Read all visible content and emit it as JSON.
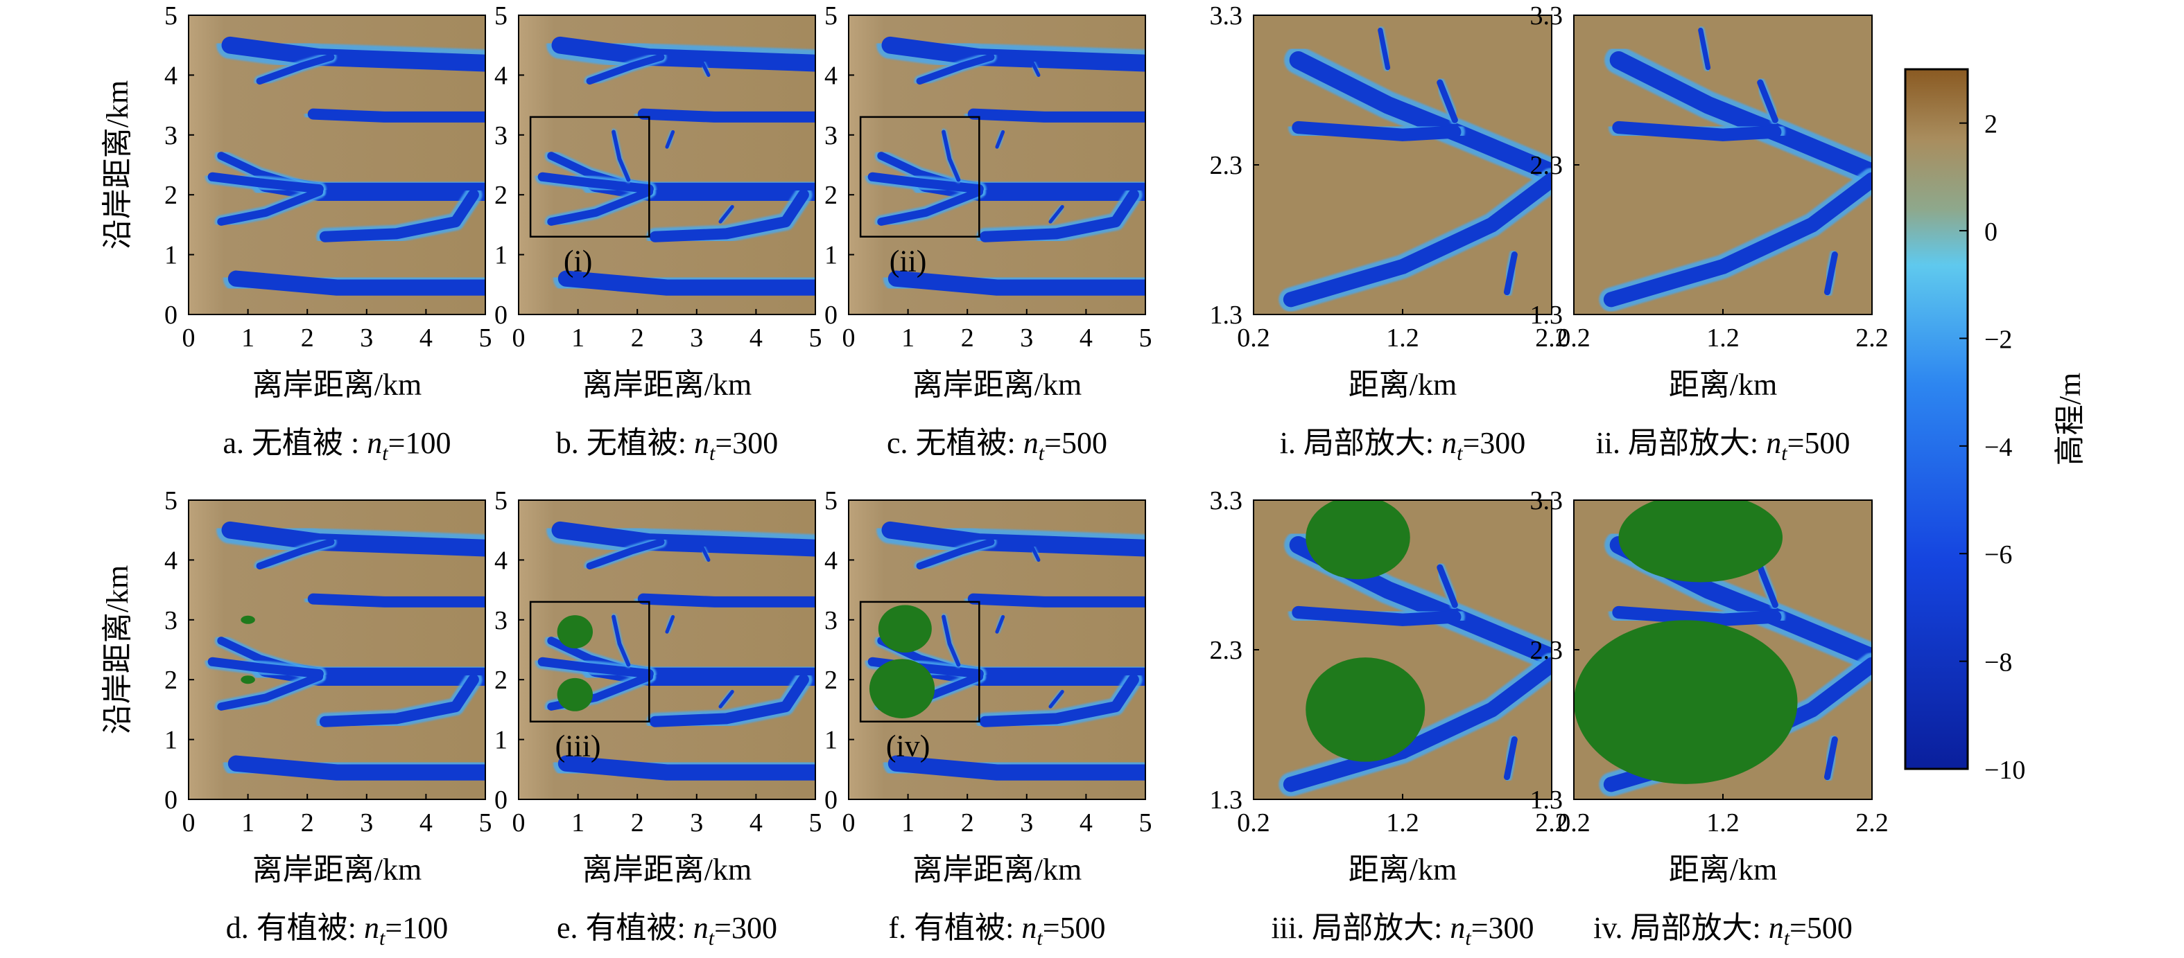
{
  "colorbar": {
    "label": "高程/m",
    "ticks": [
      "2",
      "0",
      "−2",
      "−4",
      "−6",
      "−8",
      "−10"
    ],
    "tick_values": [
      2,
      0,
      -2,
      -4,
      -6,
      -8,
      -10
    ],
    "range": [
      -10,
      3
    ],
    "colors": [
      "#0a1f9c",
      "#0f3fd6",
      "#1f6ff0",
      "#3ea0ef",
      "#5fc9ee",
      "#8fa68a",
      "#a98d5e",
      "#8a5a22"
    ]
  },
  "colors": {
    "sand": "#a48a5e",
    "sand_light": "#bfa57a",
    "channel_deep": "#0f3ad0",
    "channel_edge": "#4aa8ee",
    "vegetation": "#1f7a1c",
    "frame": "#000000"
  },
  "axes": {
    "full_x_label": "离岸距离/km",
    "full_y_label": "沿岸距离/km",
    "full_x_ticks": [
      "0",
      "1",
      "2",
      "3",
      "4",
      "5"
    ],
    "full_y_ticks": [
      "0",
      "1",
      "2",
      "3",
      "4",
      "5"
    ],
    "zoom_x_label": "距离/km",
    "zoom_x_ticks": [
      "0.2",
      "1.2",
      "2.2"
    ],
    "zoom_y_ticks": [
      "1.3",
      "2.3",
      "3.3"
    ]
  },
  "panels": {
    "a": {
      "prefix": "a. 无植被 : ",
      "n": "n",
      "sub": "t",
      "suffix": "=100"
    },
    "b": {
      "prefix": "b. 无植被: ",
      "n": "n",
      "sub": "t",
      "suffix": "=300",
      "box_label": "(i)"
    },
    "c": {
      "prefix": "c. 无植被: ",
      "n": "n",
      "sub": "t",
      "suffix": "=500",
      "box_label": "(ii)"
    },
    "i": {
      "prefix": "i. 局部放大: ",
      "n": "n",
      "sub": "t",
      "suffix": "=300"
    },
    "ii": {
      "prefix": "ii. 局部放大: ",
      "n": "n",
      "sub": "t",
      "suffix": "=500"
    },
    "d": {
      "prefix": "d. 有植被: ",
      "n": "n",
      "sub": "t",
      "suffix": "=100"
    },
    "e": {
      "prefix": "e. 有植被: ",
      "n": "n",
      "sub": "t",
      "suffix": "=300",
      "box_label": "(iii)"
    },
    "f": {
      "prefix": "f. 有植被: ",
      "n": "n",
      "sub": "t",
      "suffix": "=500",
      "box_label": "(iv)"
    },
    "iii": {
      "prefix": "iii. 局部放大: ",
      "n": "n",
      "sub": "t",
      "suffix": "=300"
    },
    "iv": {
      "prefix": "iv. 局部放大: ",
      "n": "n",
      "sub": "t",
      "suffix": "=500"
    }
  },
  "chart_data": [
    {
      "panel": "a",
      "type": "heatmap",
      "xlabel": "离岸距离/km",
      "ylabel": "沿岸距离/km",
      "xlim": [
        0,
        5
      ],
      "ylim": [
        0,
        5
      ],
      "vegetation": false,
      "nt": 100
    },
    {
      "panel": "b",
      "type": "heatmap",
      "xlabel": "离岸距离/km",
      "xlim": [
        0,
        5
      ],
      "ylim": [
        0,
        5
      ],
      "vegetation": false,
      "nt": 300,
      "zoom_box": {
        "x": [
          0.2,
          2.2
        ],
        "y": [
          1.3,
          3.3
        ]
      }
    },
    {
      "panel": "c",
      "type": "heatmap",
      "xlabel": "离岸距离/km",
      "xlim": [
        0,
        5
      ],
      "ylim": [
        0,
        5
      ],
      "vegetation": false,
      "nt": 500,
      "zoom_box": {
        "x": [
          0.2,
          2.2
        ],
        "y": [
          1.3,
          3.3
        ]
      }
    },
    {
      "panel": "i",
      "type": "heatmap",
      "xlabel": "距离/km",
      "xlim": [
        0.2,
        2.2
      ],
      "ylim": [
        1.3,
        3.3
      ],
      "vegetation": false,
      "nt": 300
    },
    {
      "panel": "ii",
      "type": "heatmap",
      "xlabel": "距离/km",
      "xlim": [
        0.2,
        2.2
      ],
      "ylim": [
        1.3,
        3.3
      ],
      "vegetation": false,
      "nt": 500
    },
    {
      "panel": "d",
      "type": "heatmap",
      "xlabel": "离岸距离/km",
      "ylabel": "沿岸距离/km",
      "xlim": [
        0,
        5
      ],
      "ylim": [
        0,
        5
      ],
      "vegetation": true,
      "nt": 100
    },
    {
      "panel": "e",
      "type": "heatmap",
      "xlabel": "离岸距离/km",
      "xlim": [
        0,
        5
      ],
      "ylim": [
        0,
        5
      ],
      "vegetation": true,
      "nt": 300,
      "zoom_box": {
        "x": [
          0.2,
          2.2
        ],
        "y": [
          1.3,
          3.3
        ]
      }
    },
    {
      "panel": "f",
      "type": "heatmap",
      "xlabel": "离岸距离/km",
      "xlim": [
        0,
        5
      ],
      "ylim": [
        0,
        5
      ],
      "vegetation": true,
      "nt": 500,
      "zoom_box": {
        "x": [
          0.2,
          2.2
        ],
        "y": [
          1.3,
          3.3
        ]
      }
    },
    {
      "panel": "iii",
      "type": "heatmap",
      "xlabel": "距离/km",
      "xlim": [
        0.2,
        2.2
      ],
      "ylim": [
        1.3,
        3.3
      ],
      "vegetation": true,
      "nt": 300
    },
    {
      "panel": "iv",
      "type": "heatmap",
      "xlabel": "距离/km",
      "xlim": [
        0.2,
        2.2
      ],
      "ylim": [
        1.3,
        3.3
      ],
      "vegetation": true,
      "nt": 500
    }
  ]
}
